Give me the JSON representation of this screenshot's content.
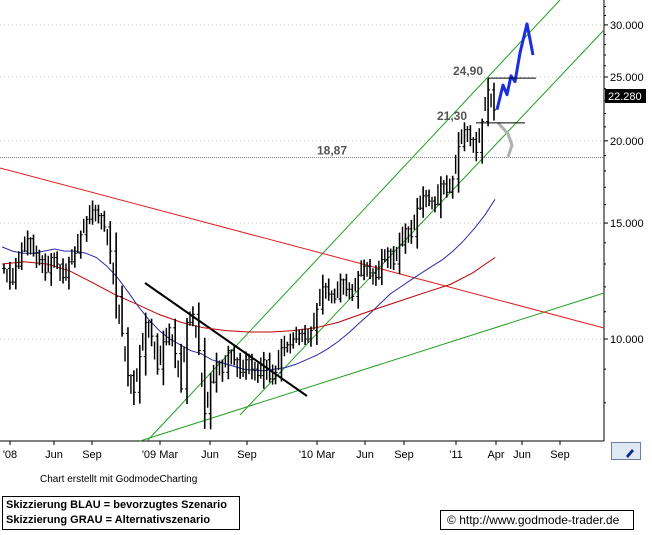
{
  "chart_data": {
    "type": "line",
    "subtype": "candlestick-price-chart",
    "y_scale": "log",
    "ylim": [
      7.0,
      32.5
    ],
    "y_ticks": [
      "30.000",
      "25.000",
      "20.000",
      "15.000",
      "10.000"
    ],
    "x_ticks": [
      "'08",
      "Jun",
      "Sep",
      "'09 Mar",
      "Jun",
      "Sep",
      "'10 Mar",
      "Jun",
      "Sep",
      "'11",
      "Apr",
      "Jun",
      "Sep"
    ],
    "current_price_label": "22.280",
    "current_price": 22.28,
    "levels": [
      {
        "label": "24,90",
        "value": 24.9
      },
      {
        "label": "21,30",
        "value": 21.3
      },
      {
        "label": "18,87",
        "value": 18.87
      }
    ],
    "price_series_close": [
      12.8,
      12.2,
      12.9,
      13.6,
      14.2,
      13.5,
      13.2,
      12.6,
      13.3,
      13.0,
      12.4,
      13.1,
      13.5,
      14.4,
      15.2,
      15.7,
      15.4,
      14.8,
      13.6,
      11.6,
      10.2,
      8.8,
      8.3,
      9.4,
      10.6,
      10.1,
      9.0,
      9.9,
      10.4,
      9.5,
      8.4,
      10.6,
      10.9,
      9.6,
      7.7,
      8.6,
      9.2,
      8.9,
      9.6,
      9.3,
      8.9,
      9.3,
      9.0,
      8.8,
      9.3,
      8.7,
      8.9,
      9.7,
      9.8,
      10.0,
      10.2,
      10.0,
      10.3,
      11.1,
      12.0,
      11.7,
      11.5,
      12.3,
      11.9,
      11.6,
      12.5,
      12.9,
      12.6,
      12.4,
      13.2,
      13.6,
      13.0,
      13.9,
      14.7,
      14.3,
      15.8,
      16.5,
      16.2,
      16.0,
      17.2,
      16.7,
      17.5,
      19.6,
      20.8,
      20.1,
      19.2,
      21.4,
      23.9,
      22.28
    ],
    "series": [
      {
        "name": "",
        "color": "#2a2aa8",
        "values": [
          13.8,
          13.6,
          13.5,
          13.5,
          13.6,
          13.7,
          13.6,
          13.6,
          13.5,
          13.3,
          12.9,
          12.4,
          11.8,
          11.2,
          10.7,
          10.3,
          10.0,
          9.8,
          9.6,
          9.5,
          9.3,
          9.2,
          9.1,
          9.0,
          8.96,
          8.95,
          9.0,
          9.05,
          9.15,
          9.3,
          9.45,
          9.65,
          9.9,
          10.2,
          10.55,
          10.9,
          11.3,
          11.7,
          12.0,
          12.3,
          12.6,
          12.9,
          13.2,
          13.6,
          14.1,
          14.7,
          15.4,
          16.3
        ]
      },
      {
        "name": "",
        "color": "#c00000",
        "values": [
          13.0,
          13.1,
          13.0,
          12.7,
          12.2,
          11.7,
          11.3,
          10.9,
          10.6,
          10.4,
          10.3,
          10.25,
          10.25,
          10.3,
          10.4,
          10.6,
          10.9,
          11.2,
          11.5,
          11.8,
          12.1,
          12.6,
          13.3
        ]
      }
    ],
    "scenarios": [
      {
        "name": "Skizzierung BLAU = bevorzugtes Szenario",
        "color": "#1a2ee0",
        "y": [
          22.3,
          24.3,
          23.5,
          25.1,
          24.6,
          27.2,
          30.1,
          27.0
        ]
      },
      {
        "name": "Skizzierung GRAU = Alternativszenario",
        "color": "#b0b0b0",
        "y": [
          21.3,
          20.5,
          19.7,
          18.9
        ]
      }
    ],
    "trendlines": [
      {
        "kind": "channel-support",
        "color": "#22a022"
      },
      {
        "kind": "channel-resistance",
        "color": "#22a022"
      },
      {
        "kind": "long-term-support",
        "color": "#22a022"
      },
      {
        "kind": "long-term-resistance",
        "color": "#e02020"
      },
      {
        "kind": "downtrend-2009",
        "color": "#000000"
      }
    ]
  },
  "footer": {
    "credit": "Chart erstellt mit GodmodeCharting",
    "legend_blue": "Skizzierung BLAU = bevorzugtes Szenario",
    "legend_gray": "Skizzierung GRAU = Alternativszenario",
    "copyright": "©",
    "url": "http://www.godmode-trader.de"
  },
  "colors": {
    "price": "#000000",
    "ma_short": "#2a2aa8",
    "ma_long": "#c00000",
    "trend_green": "#22a022",
    "trend_red": "#e02020",
    "blue_scenario": "#1a2ee0",
    "gray_scenario": "#b0b0b0",
    "reference_line": "#808080"
  }
}
